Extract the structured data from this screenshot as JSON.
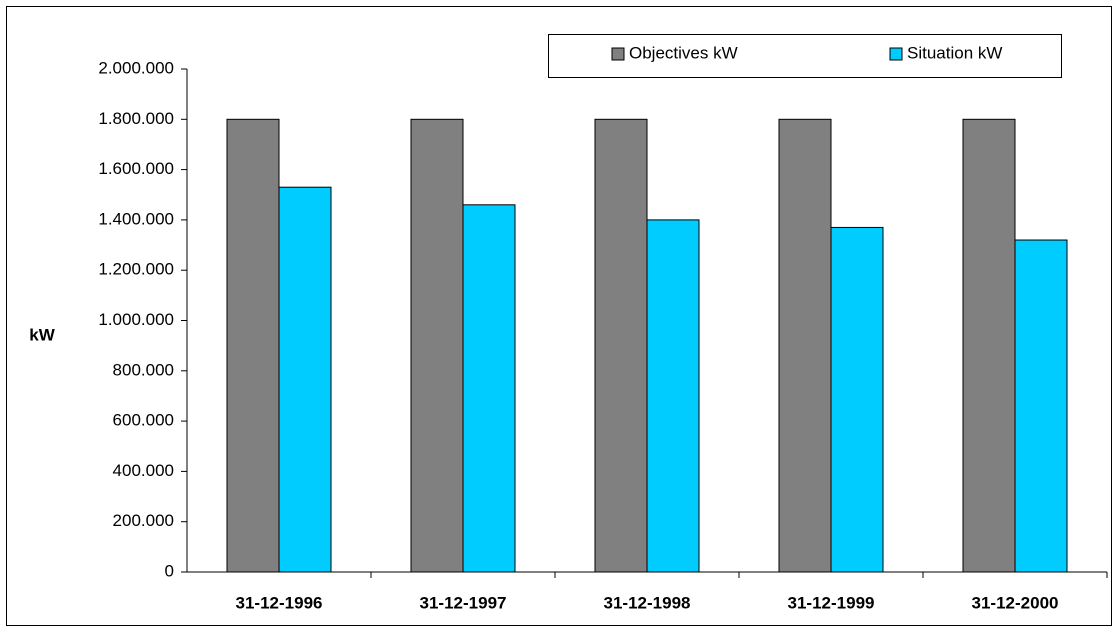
{
  "chart_data": {
    "type": "bar",
    "y_label": "kW",
    "categories": [
      "31-12-1996",
      "31-12-1997",
      "31-12-1998",
      "31-12-1999",
      "31-12-2000"
    ],
    "series": [
      {
        "name": "Objectives kW",
        "color": "#808080",
        "values": [
          1800000,
          1800000,
          1800000,
          1800000,
          1800000
        ]
      },
      {
        "name": "Situation kW",
        "color": "#00ccff",
        "values": [
          1530000,
          1460000,
          1400000,
          1370000,
          1320000
        ]
      }
    ],
    "ylim": [
      0,
      2000000
    ],
    "yticks": [
      0,
      {
        "value": 200000,
        "label": "200.000"
      },
      {
        "value": 400000,
        "label": "400.000"
      },
      {
        "value": 600000,
        "label": "600.000"
      },
      {
        "value": 800000,
        "label": "800.000"
      },
      {
        "value": 1000000,
        "label": "1.000.000"
      },
      {
        "value": 1200000,
        "label": "1.200.000"
      },
      {
        "value": 1400000,
        "label": "1.400.000"
      },
      {
        "value": 1600000,
        "label": "1.600.000"
      },
      {
        "value": 1800000,
        "label": "1.800.000"
      },
      {
        "value": 2000000,
        "label": "2.000.000"
      }
    ],
    "grid": false,
    "legend": "top-right"
  }
}
